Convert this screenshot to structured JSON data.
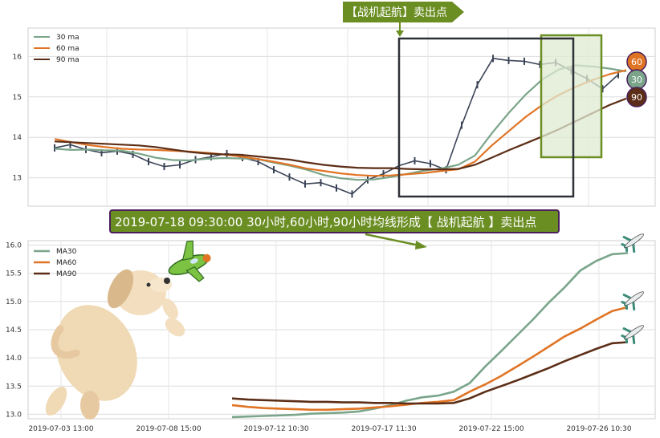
{
  "chart_data": [
    {
      "type": "line",
      "panel": "top",
      "ylim": [
        12.3,
        16.7
      ],
      "yticks": [
        13,
        14,
        15,
        16
      ],
      "grid": true,
      "legend_position": "top-left",
      "series": [
        {
          "name": "30 ma",
          "color": "#7aa58a",
          "values": [
            13.72,
            13.69,
            13.7,
            13.68,
            13.67,
            13.6,
            13.5,
            13.44,
            13.43,
            13.47,
            13.49,
            13.48,
            13.47,
            13.38,
            13.3,
            13.2,
            13.07,
            12.99,
            12.95,
            12.96,
            13.02,
            13.1,
            13.18,
            13.23,
            13.32,
            13.55,
            14.1,
            14.6,
            15.05,
            15.43,
            15.68,
            15.78,
            15.75,
            15.7,
            15.63
          ]
        },
        {
          "name": "60 ma",
          "color": "#e07425",
          "values": [
            13.96,
            13.88,
            13.81,
            13.76,
            13.72,
            13.7,
            13.69,
            13.67,
            13.65,
            13.62,
            13.58,
            13.53,
            13.47,
            13.4,
            13.32,
            13.23,
            13.17,
            13.11,
            13.07,
            13.05,
            13.06,
            13.09,
            13.12,
            13.17,
            13.21,
            13.4,
            13.8,
            14.15,
            14.5,
            14.8,
            15.05,
            15.25,
            15.42,
            15.56,
            15.66
          ]
        },
        {
          "name": "90 ma",
          "color": "#5c2e17",
          "values": [
            13.9,
            13.88,
            13.86,
            13.84,
            13.82,
            13.8,
            13.76,
            13.7,
            13.64,
            13.6,
            13.58,
            13.57,
            13.53,
            13.49,
            13.45,
            13.38,
            13.32,
            13.28,
            13.25,
            13.24,
            13.24,
            13.22,
            13.21,
            13.21,
            13.22,
            13.32,
            13.5,
            13.68,
            13.85,
            14.02,
            14.2,
            14.4,
            14.6,
            14.8,
            14.96
          ]
        }
      ],
      "price_series": [
        13.74,
        13.82,
        13.7,
        13.62,
        13.66,
        13.58,
        13.4,
        13.28,
        13.32,
        13.45,
        13.52,
        13.6,
        13.5,
        13.4,
        13.2,
        13.02,
        12.85,
        12.88,
        12.75,
        12.6,
        12.95,
        13.1,
        13.3,
        13.42,
        13.35,
        13.2,
        14.3,
        15.3,
        15.95,
        15.9,
        15.88,
        15.8,
        15.85,
        15.65,
        15.45,
        15.2,
        15.55
      ],
      "end_badges": [
        "60",
        "30",
        "90"
      ]
    },
    {
      "type": "line",
      "panel": "bottom",
      "ylim": [
        12.92,
        16.08
      ],
      "yticks": [
        "13.0",
        "13.5",
        "14.0",
        "14.5",
        "15.0",
        "15.5",
        "16.0"
      ],
      "xticks": [
        "2019-07-03 13:00",
        "2019-07-08 15:00",
        "2019-07-12 10:30",
        "2019-07-17 11:30",
        "2019-07-22 15:00",
        "2019-07-26 10:30"
      ],
      "grid": true,
      "legend_position": "top-left",
      "series": [
        {
          "name": "MA30",
          "color": "#7aa58a",
          "values": [
            12.95,
            12.96,
            12.97,
            12.98,
            12.99,
            13.01,
            13.02,
            13.03,
            13.05,
            13.1,
            13.16,
            13.24,
            13.3,
            13.33,
            13.4,
            13.55,
            13.85,
            14.12,
            14.4,
            14.68,
            14.98,
            15.25,
            15.55,
            15.72,
            15.84,
            15.86
          ]
        },
        {
          "name": "MA60",
          "color": "#e07425",
          "values": [
            13.16,
            13.13,
            13.11,
            13.1,
            13.09,
            13.08,
            13.08,
            13.09,
            13.1,
            13.12,
            13.14,
            13.17,
            13.2,
            13.22,
            13.25,
            13.4,
            13.53,
            13.68,
            13.85,
            14.02,
            14.2,
            14.38,
            14.52,
            14.68,
            14.83,
            14.9
          ]
        },
        {
          "name": "MA90",
          "color": "#5c2e17",
          "values": [
            13.28,
            13.26,
            13.25,
            13.24,
            13.23,
            13.22,
            13.22,
            13.21,
            13.21,
            13.2,
            13.2,
            13.19,
            13.19,
            13.19,
            13.2,
            13.28,
            13.4,
            13.5,
            13.6,
            13.71,
            13.82,
            13.94,
            14.05,
            14.16,
            14.26,
            14.28
          ]
        }
      ]
    }
  ],
  "callouts": {
    "top_arrow_label": "【战机起航】卖出点",
    "banner_label": "2019-07-18 09:30:00 30小时,60小时,90小时均线形成【 战机起航 】卖出点"
  },
  "colors": {
    "ma30": "#7aa58a",
    "ma60": "#e07425",
    "ma90": "#5c2e17",
    "accent_green": "#6b8e23",
    "box_dark": "#2f3138",
    "highlight_fill": "#dfe9d2",
    "banner_border": "#4a1f5c"
  },
  "icons": [
    "airplane-icon",
    "dog-with-plane-illustration"
  ]
}
